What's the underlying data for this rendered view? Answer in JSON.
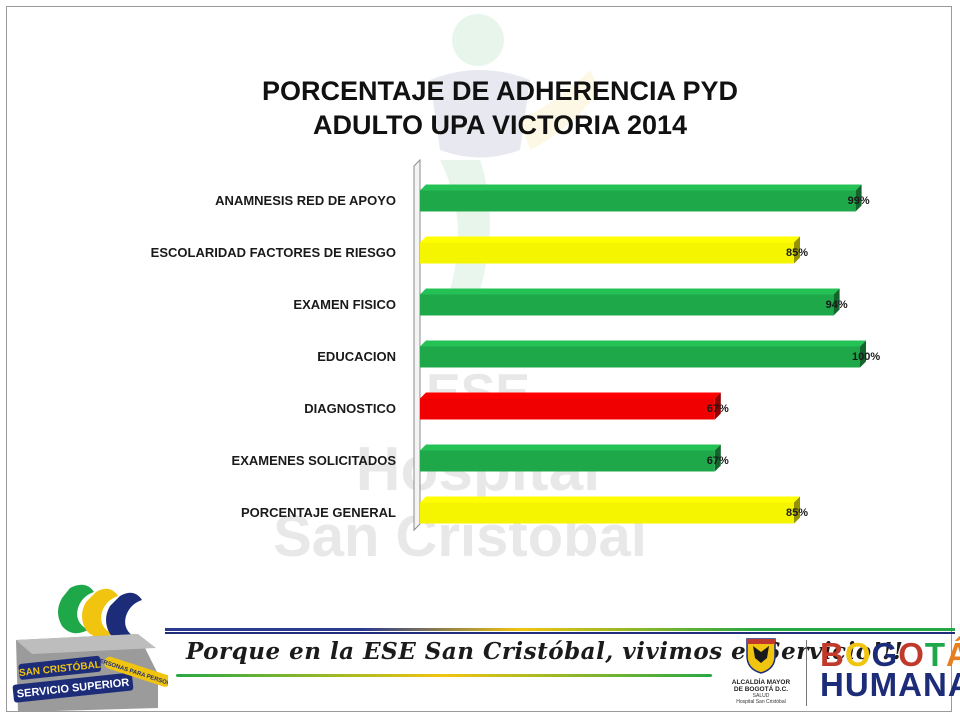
{
  "title": {
    "line1": "PORCENTAJE  DE ADHERENCIA  PYD",
    "line2": "ADULTO UPA VICTORIA 2014"
  },
  "chart_data": {
    "type": "bar",
    "orientation": "horizontal",
    "style": "3d",
    "title": "PORCENTAJE  DE ADHERENCIA  PYD ADULTO UPA VICTORIA 2014",
    "categories": [
      "ANAMNESIS RED DE APOYO",
      "ESCOLARIDAD FACTORES DE RIESGO",
      "EXAMEN FISICO",
      "EDUCACION",
      "DIAGNOSTICO",
      "EXAMENES SOLICITADOS",
      "PORCENTAJE GENERAL"
    ],
    "values": [
      99,
      85,
      94,
      100,
      67,
      67,
      85
    ],
    "value_labels": [
      "99%",
      "85%",
      "94%",
      "100%",
      "67%",
      "67%",
      "85%"
    ],
    "bar_colors": [
      "#1fa84a",
      "#f5f500",
      "#1fa84a",
      "#1fa84a",
      "#f00000",
      "#1fa84a",
      "#f5f500"
    ],
    "xlim": [
      0,
      100
    ],
    "grid": false,
    "legend": "none"
  },
  "watermark": {
    "line1": "ESE",
    "line2": "Hospital",
    "line3": "San Cristobal"
  },
  "footer": {
    "logo_line1": "SAN CRISTÓBAL",
    "logo_line2": "SERVICIO SUPERIOR",
    "logo_ribbon": "\"PERSONAS PARA PERSONAS\"",
    "slogan": "Porque en la ESE San Cristóbal, vivimos el Servicio!!!",
    "alcaldia_line1": "ALCALDÍA MAYOR",
    "alcaldia_line2": "DE BOGOTÁ D.C.",
    "alcaldia_line3": "SALUD",
    "alcaldia_line4": "Hospital San Cristóbal",
    "bogota_line1": "BOGOTÁ",
    "bogota_line2": "HUMANA"
  },
  "colors": {
    "green": "#1fa84a",
    "yellow": "#f5f500",
    "red": "#f00000",
    "brand_blue": "#1c2c78"
  }
}
